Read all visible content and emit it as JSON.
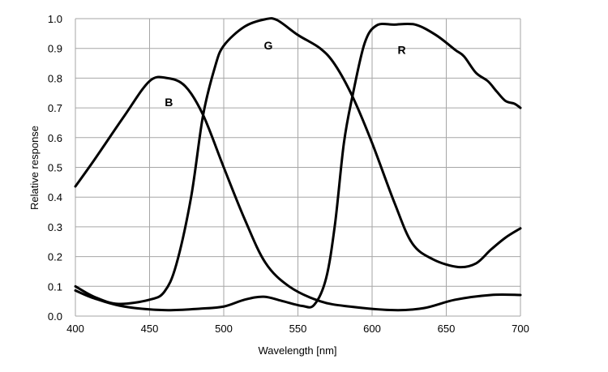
{
  "chart_data": {
    "type": "line",
    "title": "",
    "xlabel": "Wavelength [nm]",
    "ylabel": "Relative response",
    "xlim": [
      400,
      700
    ],
    "ylim": [
      0,
      1.0
    ],
    "grid": true,
    "xticks": [
      "400",
      "450",
      "500",
      "550",
      "600",
      "650",
      "700"
    ],
    "yticks": [
      "0.0",
      "0.1",
      "0.2",
      "0.3",
      "0.4",
      "0.5",
      "0.6",
      "0.7",
      "0.8",
      "0.9",
      "1.0"
    ],
    "line_color": "#000000",
    "grid_color": "#a6a6a6",
    "series": [
      {
        "name": "B",
        "label_at": [
          463,
          0.72
        ],
        "x": [
          400,
          413,
          433,
          450,
          462,
          474,
          486,
          500,
          514,
          528,
          544,
          565,
          585,
          615,
          635,
          656,
          680,
          700
        ],
        "y": [
          0.436,
          0.527,
          0.673,
          0.79,
          0.8,
          0.773,
          0.677,
          0.5,
          0.327,
          0.18,
          0.1,
          0.05,
          0.032,
          0.02,
          0.027,
          0.055,
          0.071,
          0.071
        ]
      },
      {
        "name": "G",
        "label_at": [
          530,
          0.91
        ],
        "x": [
          400,
          413,
          429,
          450,
          460,
          468,
          478,
          486,
          494,
          500,
          514,
          528,
          536,
          550,
          565,
          575,
          587,
          600,
          615,
          627,
          641,
          658,
          670,
          680,
          690,
          700
        ],
        "y": [
          0.1,
          0.064,
          0.041,
          0.055,
          0.082,
          0.173,
          0.4,
          0.673,
          0.836,
          0.909,
          0.973,
          0.998,
          0.995,
          0.945,
          0.9,
          0.845,
          0.736,
          0.582,
          0.382,
          0.245,
          0.191,
          0.165,
          0.177,
          0.223,
          0.264,
          0.295
        ]
      },
      {
        "name": "R",
        "label_at": [
          620,
          0.895
        ],
        "x": [
          400,
          413,
          433,
          460,
          484,
          500,
          514,
          527,
          540,
          553,
          561,
          569,
          575,
          581,
          587,
          595,
          603,
          615,
          629,
          643,
          656,
          662,
          670,
          678,
          684,
          690,
          696,
          700
        ],
        "y": [
          0.086,
          0.059,
          0.032,
          0.02,
          0.025,
          0.032,
          0.055,
          0.065,
          0.05,
          0.034,
          0.038,
          0.127,
          0.309,
          0.582,
          0.745,
          0.918,
          0.977,
          0.98,
          0.98,
          0.945,
          0.895,
          0.873,
          0.818,
          0.79,
          0.755,
          0.723,
          0.714,
          0.7
        ]
      }
    ]
  }
}
